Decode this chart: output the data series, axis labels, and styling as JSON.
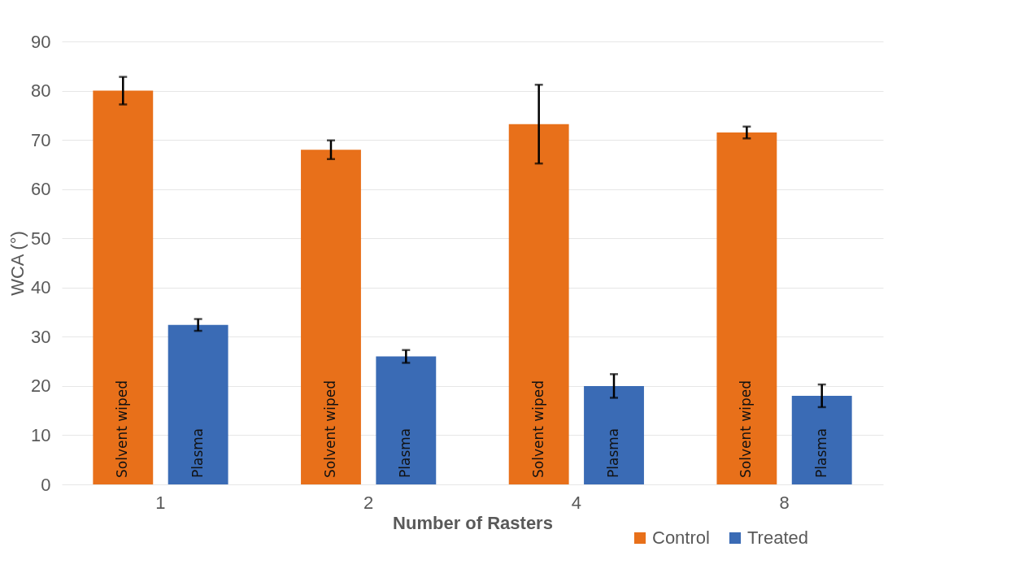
{
  "chart_data": {
    "type": "bar",
    "xlabel": "Number of Rasters",
    "ylabel": "WCA (°)",
    "categories": [
      "1",
      "2",
      "4",
      "8"
    ],
    "series": [
      {
        "name": "Control",
        "color": "#e8701a",
        "values": [
          80,
          68,
          73.2,
          71.5
        ],
        "errors": [
          2.8,
          1.9,
          8,
          1.2
        ],
        "value_labels": [
          "Solvent wiped",
          "Solvent wiped",
          "Solvent wiped",
          "Solvent wiped"
        ]
      },
      {
        "name": "Treated",
        "color": "#3a6bb5",
        "values": [
          32.4,
          26,
          20,
          18
        ],
        "errors": [
          1.2,
          1.3,
          2.4,
          2.3
        ],
        "value_labels": [
          "Plasma",
          "Plasma",
          "Plasma",
          "Plasma"
        ]
      }
    ],
    "ylim": [
      0,
      90
    ],
    "yticks": [
      0,
      10,
      20,
      30,
      40,
      50,
      60,
      70,
      80,
      90
    ],
    "grid": "y",
    "legend": "bottom right"
  }
}
